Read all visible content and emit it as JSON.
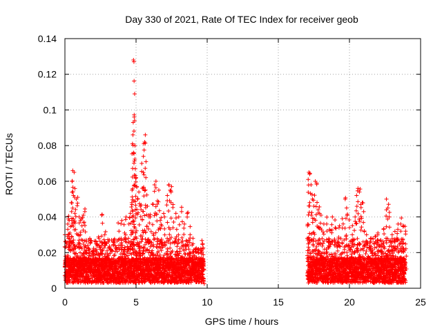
{
  "chart_data": {
    "type": "scatter",
    "title": "Day 330 of 2021, Rate Of TEC Index for receiver geob",
    "xlabel": "GPS time / hours",
    "ylabel": "ROTI / TECUs",
    "xlim": [
      0,
      25
    ],
    "ylim": [
      0,
      0.14
    ],
    "x_ticks": [
      0,
      5,
      10,
      15,
      20,
      25
    ],
    "y_ticks": [
      0,
      0.02,
      0.04,
      0.06,
      0.08,
      0.1,
      0.12,
      0.14
    ],
    "x_tick_labels": [
      "0",
      "5",
      "10",
      "15",
      "20",
      "25"
    ],
    "y_tick_labels": [
      "0",
      "0.02",
      "0.04",
      "0.06",
      "0.08",
      "0.1",
      "0.12",
      "0.14"
    ],
    "grid": true,
    "marker": "+",
    "color": "#ff0000",
    "series": [
      {
        "name": "ROTI",
        "segments": [
          {
            "start": 0.0,
            "end": 9.75
          },
          {
            "start": 17.05,
            "end": 23.95
          }
        ],
        "points": [
          [
            0.0,
            0.03
          ],
          [
            0.2,
            0.036
          ],
          [
            0.3,
            0.038
          ],
          [
            0.35,
            0.031
          ],
          [
            0.45,
            0.048
          ],
          [
            0.5,
            0.06
          ],
          [
            0.55,
            0.066
          ],
          [
            0.6,
            0.052
          ],
          [
            0.65,
            0.065
          ],
          [
            0.7,
            0.042
          ],
          [
            0.8,
            0.05
          ],
          [
            0.9,
            0.051
          ],
          [
            1.0,
            0.04
          ],
          [
            1.1,
            0.038
          ],
          [
            1.2,
            0.035
          ],
          [
            1.3,
            0.041
          ],
          [
            1.4,
            0.043
          ],
          [
            1.5,
            0.027
          ],
          [
            1.7,
            0.022
          ],
          [
            2.0,
            0.021
          ],
          [
            2.2,
            0.025
          ],
          [
            2.4,
            0.024
          ],
          [
            2.6,
            0.041
          ],
          [
            2.8,
            0.03
          ],
          [
            3.0,
            0.018
          ],
          [
            3.2,
            0.022
          ],
          [
            3.4,
            0.024
          ],
          [
            3.6,
            0.023
          ],
          [
            3.8,
            0.032
          ],
          [
            4.0,
            0.038
          ],
          [
            4.2,
            0.031
          ],
          [
            4.3,
            0.04
          ],
          [
            4.5,
            0.036
          ],
          [
            4.6,
            0.042
          ],
          [
            4.7,
            0.048
          ],
          [
            4.72,
            0.055
          ],
          [
            4.75,
            0.081
          ],
          [
            4.78,
            0.086
          ],
          [
            4.8,
            0.093
          ],
          [
            4.82,
            0.128
          ],
          [
            4.85,
            0.127
          ],
          [
            4.9,
            0.094
          ],
          [
            4.92,
            0.08
          ],
          [
            4.95,
            0.067
          ],
          [
            5.0,
            0.062
          ],
          [
            5.05,
            0.057
          ],
          [
            5.1,
            0.05
          ],
          [
            5.2,
            0.054
          ],
          [
            5.3,
            0.046
          ],
          [
            5.4,
            0.07
          ],
          [
            5.5,
            0.056
          ],
          [
            5.55,
            0.081
          ],
          [
            5.6,
            0.082
          ],
          [
            5.65,
            0.086
          ],
          [
            5.7,
            0.071
          ],
          [
            5.8,
            0.046
          ],
          [
            5.9,
            0.041
          ],
          [
            6.0,
            0.04
          ],
          [
            6.2,
            0.047
          ],
          [
            6.3,
            0.058
          ],
          [
            6.4,
            0.06
          ],
          [
            6.5,
            0.049
          ],
          [
            6.6,
            0.055
          ],
          [
            6.7,
            0.038
          ],
          [
            6.8,
            0.035
          ],
          [
            7.0,
            0.04
          ],
          [
            7.2,
            0.052
          ],
          [
            7.3,
            0.058
          ],
          [
            7.4,
            0.055
          ],
          [
            7.5,
            0.057
          ],
          [
            7.6,
            0.047
          ],
          [
            7.8,
            0.042
          ],
          [
            8.0,
            0.04
          ],
          [
            8.2,
            0.043
          ],
          [
            8.4,
            0.036
          ],
          [
            8.6,
            0.042
          ],
          [
            8.8,
            0.03
          ],
          [
            9.0,
            0.025
          ],
          [
            9.2,
            0.022
          ],
          [
            9.4,
            0.02
          ],
          [
            9.6,
            0.017
          ],
          [
            9.75,
            0.015
          ],
          [
            17.05,
            0.035
          ],
          [
            17.1,
            0.061
          ],
          [
            17.15,
            0.065
          ],
          [
            17.2,
            0.064
          ],
          [
            17.3,
            0.058
          ],
          [
            17.4,
            0.05
          ],
          [
            17.5,
            0.046
          ],
          [
            17.6,
            0.06
          ],
          [
            17.7,
            0.059
          ],
          [
            17.8,
            0.044
          ],
          [
            17.9,
            0.042
          ],
          [
            18.0,
            0.041
          ],
          [
            18.2,
            0.036
          ],
          [
            18.4,
            0.036
          ],
          [
            18.6,
            0.033
          ],
          [
            18.8,
            0.04
          ],
          [
            19.0,
            0.034
          ],
          [
            19.3,
            0.035
          ],
          [
            19.5,
            0.039
          ],
          [
            19.7,
            0.05
          ],
          [
            19.8,
            0.045
          ],
          [
            20.0,
            0.034
          ],
          [
            20.2,
            0.03
          ],
          [
            20.4,
            0.04
          ],
          [
            20.5,
            0.052
          ],
          [
            20.6,
            0.056
          ],
          [
            20.7,
            0.054
          ],
          [
            20.8,
            0.047
          ],
          [
            20.9,
            0.048
          ],
          [
            21.0,
            0.043
          ],
          [
            21.2,
            0.03
          ],
          [
            21.5,
            0.026
          ],
          [
            21.8,
            0.029
          ],
          [
            22.0,
            0.031
          ],
          [
            22.2,
            0.027
          ],
          [
            22.4,
            0.033
          ],
          [
            22.6,
            0.05
          ],
          [
            22.7,
            0.045
          ],
          [
            22.8,
            0.04
          ],
          [
            23.0,
            0.03
          ],
          [
            23.2,
            0.026
          ],
          [
            23.4,
            0.033
          ],
          [
            23.6,
            0.036
          ],
          [
            23.8,
            0.035
          ],
          [
            23.95,
            0.032
          ]
        ]
      }
    ]
  }
}
